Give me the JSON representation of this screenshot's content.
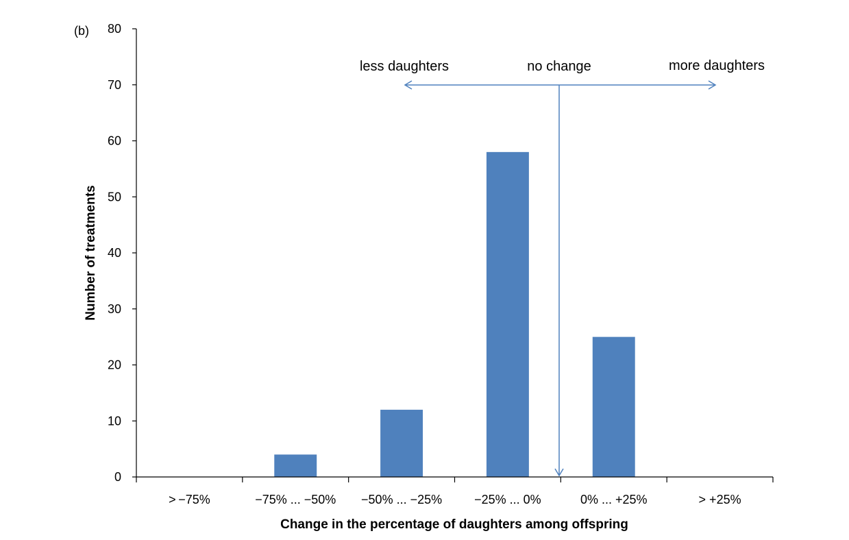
{
  "panel_label": "(b)",
  "chart_data": {
    "type": "bar",
    "categories": [
      "> −75%",
      "−75% ... −50%",
      "−50% ... −25%",
      "−25% ... 0%",
      "0% ... +25%",
      "> +25%"
    ],
    "values": [
      0,
      4,
      12,
      58,
      25,
      0
    ],
    "xlabel": "Change in the percentage of daughters among offspring",
    "ylabel": "Number of treatments",
    "ylim": [
      0,
      80
    ],
    "yticks": [
      0,
      10,
      20,
      30,
      40,
      50,
      60,
      70,
      80
    ],
    "bar_color": "#4f81bd",
    "arrow_color": "#4f81bd",
    "grid": false,
    "annotations": {
      "less": "less daughters",
      "none": "no change",
      "more": "more daughters"
    }
  }
}
